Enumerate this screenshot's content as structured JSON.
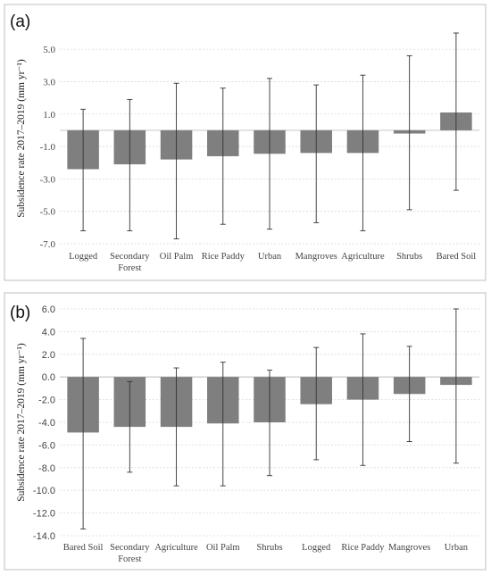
{
  "chart_data": [
    {
      "panel_label": "(a)",
      "type": "bar",
      "ylabel": "Subsidence rate 2017–2019 (mm yr⁻¹)",
      "ylim": [
        -7.0,
        6.0
      ],
      "yticks": [
        "5.0",
        "3.0",
        "1.0",
        "-1.0",
        "-3.0",
        "-5.0",
        "-7.0"
      ],
      "grid": true,
      "categories": [
        [
          "Logged"
        ],
        [
          "Secondary",
          "Forest"
        ],
        [
          "Oil Palm"
        ],
        [
          "Rice Paddy"
        ],
        [
          "Urban"
        ],
        [
          "Mangroves"
        ],
        [
          "Agriculture"
        ],
        [
          "Shrubs"
        ],
        [
          "Bared Soil"
        ]
      ],
      "values": [
        -2.4,
        -2.1,
        -1.8,
        -1.6,
        -1.45,
        -1.4,
        -1.4,
        -0.2,
        1.1
      ],
      "err_upper": [
        1.3,
        1.9,
        2.9,
        2.6,
        3.2,
        2.8,
        3.4,
        4.6,
        6.0
      ],
      "err_lower": [
        -6.2,
        -6.2,
        -6.7,
        -5.8,
        -6.1,
        -5.7,
        -6.2,
        -4.9,
        -3.7
      ]
    },
    {
      "panel_label": "(b)",
      "type": "bar",
      "ylabel": "Subsidence rate 2017–2019 (mm yr⁻¹)",
      "ylim": [
        -14.0,
        6.0
      ],
      "yticks": [
        "6.0",
        "4.0",
        "2.0",
        "0.0",
        "-2.0",
        "-4.0",
        "-6.0",
        "-8.0",
        "-10.0",
        "-12.0",
        "-14.0"
      ],
      "grid": true,
      "categories": [
        [
          "Bared Soil"
        ],
        [
          "Secondary",
          "Forest"
        ],
        [
          "Agriculture"
        ],
        [
          "Oil Palm"
        ],
        [
          "Shrubs"
        ],
        [
          "Logged"
        ],
        [
          "Rice Paddy"
        ],
        [
          "Mangroves"
        ],
        [
          "Urban"
        ]
      ],
      "values": [
        -4.9,
        -4.4,
        -4.4,
        -4.1,
        -4.0,
        -2.4,
        -2.0,
        -1.5,
        -0.7
      ],
      "err_upper": [
        3.4,
        -0.4,
        0.8,
        1.3,
        0.6,
        2.6,
        3.8,
        2.7,
        6.0
      ],
      "err_lower": [
        -13.4,
        -8.4,
        -9.6,
        -9.6,
        -8.7,
        -7.3,
        -7.8,
        -5.7,
        -7.6
      ]
    }
  ]
}
